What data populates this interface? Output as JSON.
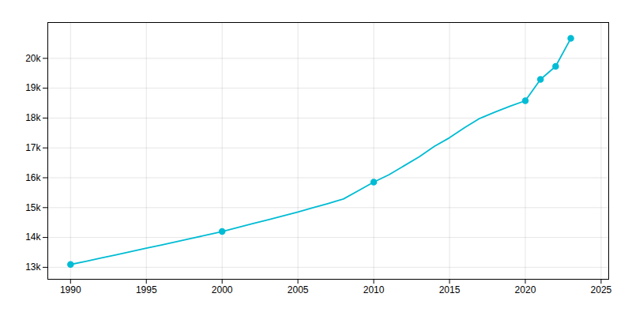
{
  "chart_data": {
    "type": "line",
    "x": [
      1990,
      1991,
      1992,
      1993,
      1994,
      1995,
      1996,
      1997,
      1998,
      1999,
      2000,
      2001,
      2002,
      2003,
      2004,
      2005,
      2006,
      2007,
      2008,
      2009,
      2010,
      2011,
      2012,
      2013,
      2014,
      2015,
      2016,
      2017,
      2018,
      2019,
      2020,
      2021,
      2022,
      2023
    ],
    "series": [
      {
        "type": "line",
        "color": "#00bcd4",
        "values": [
          13096,
          13200,
          13310,
          13420,
          13530,
          13640,
          13750,
          13860,
          13970,
          14085,
          14200,
          14330,
          14460,
          14590,
          14720,
          14855,
          14995,
          15140,
          15290,
          15570,
          15856,
          16100,
          16400,
          16700,
          17050,
          17340,
          17680,
          17990,
          18200,
          18400,
          18581,
          19294,
          19730,
          20669
        ]
      },
      {
        "type": "scatter",
        "marker": "circle",
        "color": "#00bcd4",
        "values": [
          13096,
          null,
          null,
          null,
          null,
          null,
          null,
          null,
          null,
          null,
          14200,
          null,
          null,
          null,
          null,
          null,
          null,
          null,
          null,
          null,
          15856,
          null,
          null,
          null,
          null,
          null,
          null,
          null,
          null,
          null,
          18581,
          19294,
          19730,
          20669
        ]
      }
    ],
    "xlim": [
      1988.5,
      2025.5
    ],
    "xticks": [
      1990,
      1995,
      2000,
      2005,
      2010,
      2015,
      2020,
      2025
    ],
    "ylim": [
      12600,
      21200
    ],
    "yticks": [
      {
        "value": 13000,
        "label": "13k"
      },
      {
        "value": 14000,
        "label": "14k"
      },
      {
        "value": 15000,
        "label": "15k"
      },
      {
        "value": 16000,
        "label": "16k"
      },
      {
        "value": 17000,
        "label": "17k"
      },
      {
        "value": 18000,
        "label": "18k"
      },
      {
        "value": 19000,
        "label": "19k"
      },
      {
        "value": 20000,
        "label": "20k"
      }
    ],
    "grid": true
  }
}
